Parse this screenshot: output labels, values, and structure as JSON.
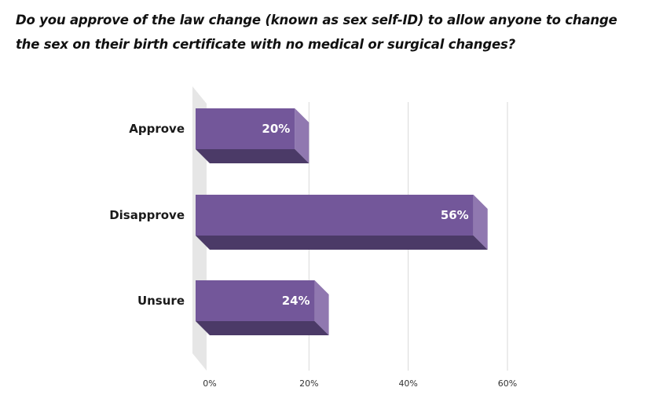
{
  "chart_data": {
    "type": "bar",
    "orientation": "horizontal",
    "title": "Do you approve of the law change (known as sex self-ID) to allow anyone to change the sex on their birth certificate with no medical or surgical changes?",
    "categories": [
      "Approve",
      "Disapprove",
      "Unsure"
    ],
    "values": [
      20,
      56,
      24
    ],
    "data_labels": [
      "20%",
      "56%",
      "24%"
    ],
    "xlim": [
      0,
      60
    ],
    "x_ticks": [
      0,
      20,
      40,
      60
    ],
    "x_tick_labels": [
      "0%",
      "20%",
      "40%",
      "60%"
    ],
    "grid": true,
    "style": "3d",
    "colors": {
      "bar_front": "#73579a",
      "bar_side": "#9078b0",
      "bar_bottom": "#4b3a67",
      "wall": "#e6e6e6",
      "grid": "#d9d9d9"
    }
  }
}
